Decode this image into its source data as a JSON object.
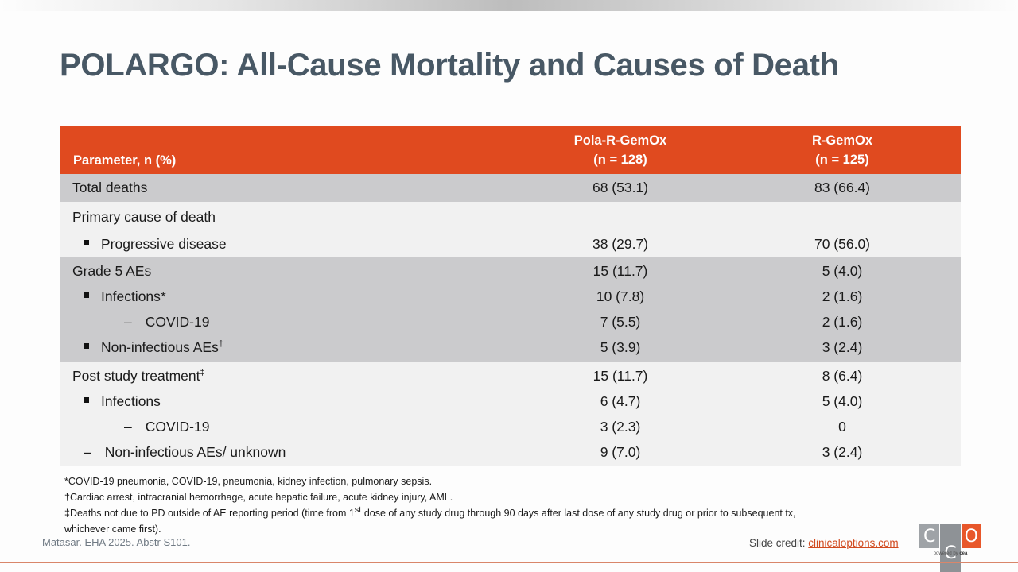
{
  "slide": {
    "title": "POLARGO: All-Cause Mortality and Causes of Death"
  },
  "table": {
    "header": {
      "parameter": "Parameter, n (%)",
      "arm_a_name": "Pola-R-GemOx",
      "arm_a_n": "(n = 128)",
      "arm_b_name": "R-GemOx",
      "arm_b_n": "(n = 125)"
    },
    "groups": [
      {
        "rows": [
          {
            "label": "Total deaths",
            "a": "68 (53.1)",
            "b": "83 (66.4)"
          }
        ]
      },
      {
        "rows": [
          {
            "label": "Primary cause of death",
            "a": "",
            "b": ""
          },
          {
            "label": "Progressive disease",
            "a": "38 (29.7)",
            "b": "70 (56.0)"
          }
        ]
      },
      {
        "rows": [
          {
            "label": "Grade 5 AEs",
            "a": "15 (11.7)",
            "b": "5 (4.0)"
          },
          {
            "label": "Infections*",
            "a": "10 (7.8)",
            "b": "2 (1.6)"
          },
          {
            "label": "COVID-19",
            "a": "7 (5.5)",
            "b": "2 (1.6)"
          },
          {
            "label": "Non-infectious AEs",
            "sup": "†",
            "a": "5 (3.9)",
            "b": "3 (2.4)"
          }
        ]
      },
      {
        "rows": [
          {
            "label": "Post study treatment",
            "sup": "‡",
            "a": "15 (11.7)",
            "b": "8 (6.4)"
          },
          {
            "label": "Infections",
            "a": "6 (4.7)",
            "b": "5 (4.0)"
          },
          {
            "label": "COVID-19",
            "a": "3 (2.3)",
            "b": "0"
          },
          {
            "label": "Non-infectious AEs/ unknown",
            "a": "9 (7.0)",
            "b": "3 (2.4)"
          }
        ]
      }
    ],
    "bullet_glyph": "■",
    "dash_glyph": "–"
  },
  "footnotes": {
    "f1": "*COVID-19 pneumonia, COVID-19, pneumonia, kidney infection, pulmonary sepsis.",
    "f2": "†Cardiac arrest, intracranial hemorrhage, acute hepatic failure, acute kidney injury, AML.",
    "f3_pre": "‡Deaths not due to PD outside of AE reporting period (time from 1",
    "f3_sup": "st",
    "f3_post": " dose of any study drug through 90 days after last dose of any study drug or prior to subsequent tx, whichever came first)."
  },
  "footer": {
    "citation": "Matasar. EHA 2025. Abstr S101.",
    "credit_label": "Slide credit: ",
    "credit_link": "clinicaloptions.com",
    "logo_letters": [
      "C",
      "C",
      "O"
    ],
    "logo_powered": "powered by ",
    "logo_brand": "cea"
  },
  "colors": {
    "header_bg": "#e04a1f",
    "title": "#485865",
    "row_dark": "#cbcbcd",
    "row_light": "#f1f1f1",
    "accent_rule": "#d9866a",
    "logo_orange": "#e8572a"
  }
}
